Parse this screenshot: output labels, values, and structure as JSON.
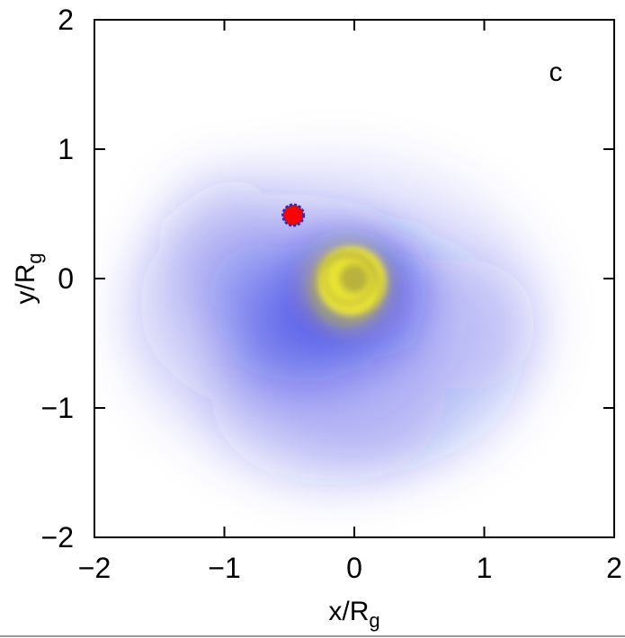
{
  "chart_data": {
    "type": "heatmap",
    "panel_label": "c",
    "xlabel": {
      "base": "x/R",
      "sub": "g"
    },
    "ylabel": {
      "base": "y/R",
      "sub": "g"
    },
    "xlim": [
      -2,
      2
    ],
    "ylim": [
      -2,
      2
    ],
    "xticks": [
      {
        "value": -2,
        "label": "−2"
      },
      {
        "value": -1,
        "label": "−1"
      },
      {
        "value": 0,
        "label": "0"
      },
      {
        "value": 1,
        "label": "1"
      },
      {
        "value": 2,
        "label": "2"
      }
    ],
    "yticks": [
      {
        "value": -2,
        "label": "−2"
      },
      {
        "value": -1,
        "label": "−1"
      },
      {
        "value": 0,
        "label": "0"
      },
      {
        "value": 1,
        "label": "1"
      },
      {
        "value": 2,
        "label": "2"
      }
    ],
    "grid": false,
    "colors": {
      "density_low": "#d6dcf8",
      "density_high": "#1a22e0",
      "core": "#f2ec2a",
      "ring_dark": "#a8a040",
      "marker_fill": "#ff0000",
      "marker_edge": "#2233cc"
    },
    "density_blobs": [
      {
        "x": -0.15,
        "y": -0.3,
        "rx": 1.65,
        "ry": 1.25,
        "opacity": 0.1
      },
      {
        "x": -0.55,
        "y": -0.2,
        "rx": 1.1,
        "ry": 0.85,
        "opacity": 0.14
      },
      {
        "x": 0.25,
        "y": -0.55,
        "rx": 1.05,
        "ry": 0.95,
        "opacity": 0.12
      },
      {
        "x": -0.2,
        "y": -0.9,
        "rx": 0.9,
        "ry": 0.7,
        "opacity": 0.14
      },
      {
        "x": -1.05,
        "y": 0.3,
        "rx": 0.45,
        "ry": 0.55,
        "opacity": 0.1
      },
      {
        "x": 0.85,
        "y": -0.35,
        "rx": 0.55,
        "ry": 0.5,
        "opacity": 0.1
      },
      {
        "x": -0.3,
        "y": -0.15,
        "rx": 0.85,
        "ry": 0.55,
        "opacity": 0.22
      },
      {
        "x": 0.0,
        "y": -0.1,
        "rx": 0.55,
        "ry": 0.38,
        "opacity": 0.3
      },
      {
        "x": -0.45,
        "y": -0.35,
        "rx": 0.6,
        "ry": 0.45,
        "opacity": 0.2
      },
      {
        "x": 0.05,
        "y": 0.1,
        "rx": 0.38,
        "ry": 0.2,
        "opacity": 0.45
      }
    ],
    "core": {
      "x": 0.0,
      "y": 0.0,
      "r": 0.28
    },
    "rings": [
      {
        "x": -0.06,
        "y": -0.08,
        "r": 0.26
      },
      {
        "x": -0.04,
        "y": 0.0,
        "r": 0.19
      },
      {
        "x": 0.0,
        "y": 0.0,
        "r": 0.1
      }
    ],
    "marker": {
      "x": -0.47,
      "y": 0.49,
      "r": 0.08
    }
  }
}
